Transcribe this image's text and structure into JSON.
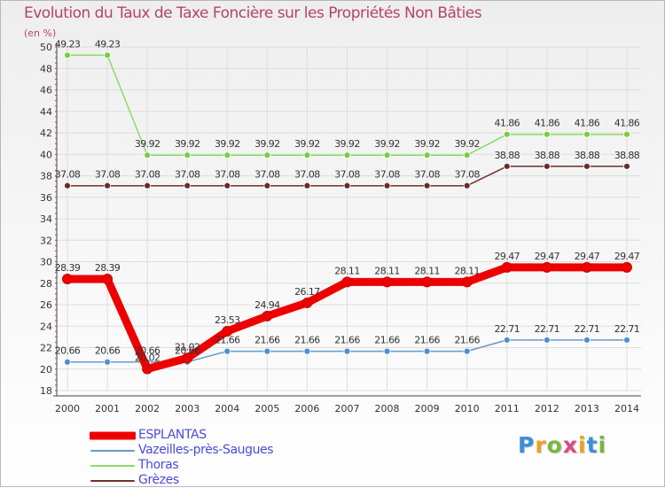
{
  "chart_data": {
    "type": "line",
    "title": "Evolution du Taux de Taxe Foncière sur les Propriétés Non Bâties",
    "ylabel": "(en %)",
    "xlabel": "",
    "x": [
      "2000",
      "2001",
      "2002",
      "2003",
      "2004",
      "2005",
      "2006",
      "2007",
      "2008",
      "2009",
      "2010",
      "2011",
      "2012",
      "2013",
      "2014"
    ],
    "ylim": [
      18,
      50
    ],
    "yticks": [
      "18",
      "20",
      "22",
      "24",
      "26",
      "28",
      "30",
      "32",
      "34",
      "36",
      "38",
      "40",
      "42",
      "44",
      "46",
      "48",
      "50"
    ],
    "grid": true,
    "legend_position": "bottom-left",
    "series": [
      {
        "name": "ESPLANTAS",
        "color": "#ee0000",
        "values": [
          28.39,
          28.39,
          20.02,
          21.02,
          23.53,
          24.94,
          26.17,
          28.11,
          28.11,
          28.11,
          28.11,
          29.47,
          29.47,
          29.47,
          29.47
        ],
        "labels": [
          "28.39",
          "28.39",
          "20.02",
          "21.02",
          "23.53",
          "24.94",
          "26.17",
          "28.11",
          "28.11",
          "28.11",
          "28.11",
          "29.47",
          "29.47",
          "29.47",
          "29.47"
        ]
      },
      {
        "name": "Vazeilles-près-Saugues",
        "color": "#6699cc",
        "values": [
          20.66,
          20.66,
          20.66,
          20.66,
          21.66,
          21.66,
          21.66,
          21.66,
          21.66,
          21.66,
          21.66,
          22.71,
          22.71,
          22.71,
          22.71
        ],
        "labels": [
          "20.66",
          "20.66",
          "20.66",
          "20.66",
          "21.66",
          "21.66",
          "21.66",
          "21.66",
          "21.66",
          "21.66",
          "21.66",
          "22.71",
          "22.71",
          "22.71",
          "22.71"
        ]
      },
      {
        "name": "Thoras",
        "color": "#88dd66",
        "values": [
          49.23,
          49.23,
          39.92,
          39.92,
          39.92,
          39.92,
          39.92,
          39.92,
          39.92,
          39.92,
          39.92,
          41.86,
          41.86,
          41.86,
          41.86
        ],
        "labels": [
          "49.23",
          "49.23",
          "39.92",
          "39.92",
          "39.92",
          "39.92",
          "39.92",
          "39.92",
          "39.92",
          "39.92",
          "39.92",
          "41.86",
          "41.86",
          "41.86",
          "41.86"
        ]
      },
      {
        "name": "Grèzes",
        "color": "#703030",
        "values": [
          37.08,
          37.08,
          37.08,
          37.08,
          37.08,
          37.08,
          37.08,
          37.08,
          37.08,
          37.08,
          37.08,
          38.88,
          38.88,
          38.88,
          38.88
        ],
        "labels": [
          "37.08",
          "37.08",
          "37.08",
          "37.08",
          "37.08",
          "37.08",
          "37.08",
          "37.08",
          "37.08",
          "37.08",
          "37.08",
          "38.88",
          "38.88",
          "38.88",
          "38.88"
        ]
      }
    ]
  },
  "logo": {
    "letters": [
      "P",
      "r",
      "o",
      "x",
      "i",
      "t",
      "i"
    ],
    "colors": [
      "#3a8fd8",
      "#f0a020",
      "#78b83a",
      "#d84a80",
      "#f0a020",
      "#3a8fd8",
      "#78b83a"
    ]
  }
}
